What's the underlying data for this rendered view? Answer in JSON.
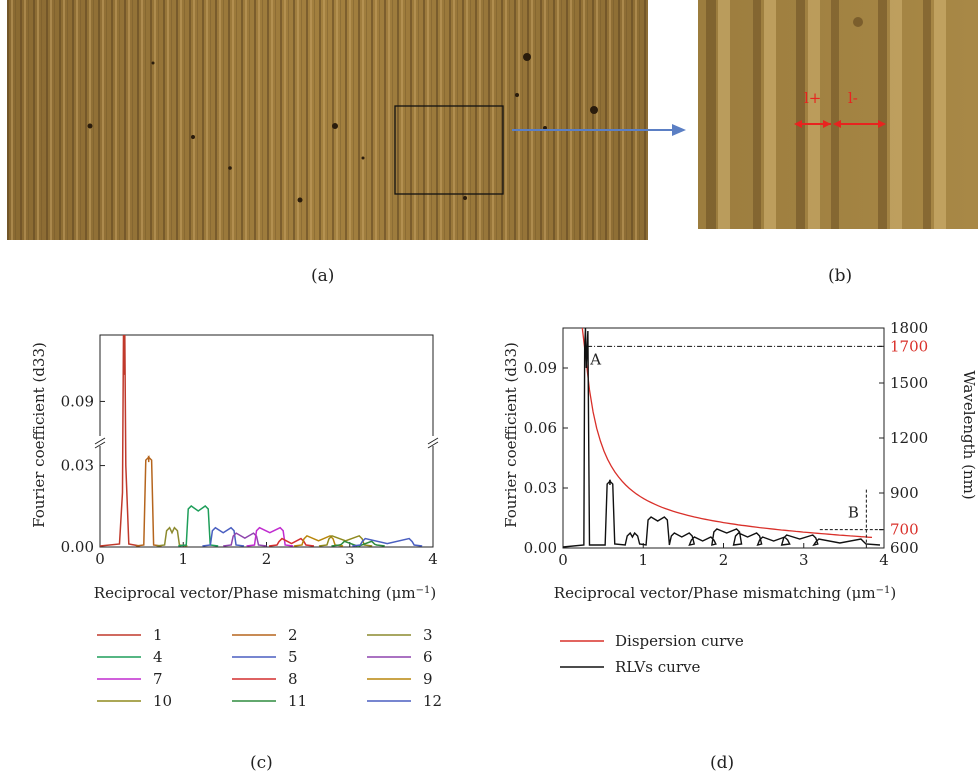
{
  "panels": {
    "a": {
      "label": "(a)"
    },
    "b": {
      "label": "(b)",
      "marker_left": "l+",
      "marker_right": "l-"
    },
    "c": {
      "label": "(c)"
    },
    "d": {
      "label": "(d)",
      "point_a": "A",
      "point_b": "B"
    }
  },
  "colors": {
    "microscope_base": "#9b7a3c",
    "arrow": "#5b7fc4",
    "marker": "#e8231f",
    "dispersion": "#d9302a",
    "rlv": "#111111"
  },
  "chart_data": [
    {
      "type": "line",
      "panel": "c",
      "xlabel": "Reciprocal vector/Phase mismatching",
      "xunit": "μm",
      "xunit_exp": "−1",
      "ylabel": "Fourier coefficient (d33)",
      "xlim": [
        0,
        4
      ],
      "ylim": [
        0,
        0.11
      ],
      "axis_break": true,
      "xticks": [
        "0",
        "1",
        "2",
        "3",
        "4"
      ],
      "yticks": [
        "0.00",
        "0.03",
        "0.09"
      ],
      "legend_placement": "below",
      "series": [
        {
          "name": "1",
          "color": "#c0392b",
          "x": [
            0.27,
            0.31
          ],
          "peak": 0.115
        },
        {
          "name": "2",
          "color": "#b5651d",
          "x": [
            0.55,
            0.62
          ],
          "peak": 0.032
        },
        {
          "name": "3",
          "color": "#8c8a2e",
          "x": [
            0.8,
            0.93
          ],
          "peak": 0.006
        },
        {
          "name": "4",
          "color": "#1e9e5a",
          "x": [
            1.06,
            1.3
          ],
          "peak": 0.014
        },
        {
          "name": "5",
          "color": "#4a5fc1",
          "x": [
            1.35,
            1.61
          ],
          "peak": 0.006
        },
        {
          "name": "6",
          "color": "#8e44ad",
          "x": [
            1.6,
            1.88
          ],
          "peak": 0.004
        },
        {
          "name": "7",
          "color": "#c02ccf",
          "x": [
            1.88,
            2.2
          ],
          "peak": 0.006
        },
        {
          "name": "8",
          "color": "#d32f2f",
          "x": [
            2.15,
            2.45
          ],
          "peak": 0.002
        },
        {
          "name": "9",
          "color": "#b8860b",
          "x": [
            2.45,
            2.8
          ],
          "peak": 0.003
        },
        {
          "name": "10",
          "color": "#8f8a1f",
          "x": [
            2.75,
            3.15
          ],
          "peak": 0.003
        },
        {
          "name": "11",
          "color": "#2e8b3e",
          "x": [
            2.9,
            3.3
          ],
          "peak": 0.001
        },
        {
          "name": "12",
          "color": "#4a5fc1",
          "x": [
            3.15,
            3.75
          ],
          "peak": 0.002
        }
      ]
    },
    {
      "type": "line",
      "panel": "d",
      "xlabel": "Reciprocal vector/Phase mismatching",
      "xunit": "μm",
      "xunit_exp": "−1",
      "ylabel": "Fourier coefficient (d33)",
      "y2label": "Wavelength (nm)",
      "xlim": [
        0,
        4
      ],
      "ylim": [
        0,
        0.11
      ],
      "y2lim": [
        600,
        1800
      ],
      "xticks": [
        "0",
        "1",
        "2",
        "3",
        "4"
      ],
      "yticks": [
        "0.00",
        "0.03",
        "0.06",
        "0.09"
      ],
      "y2ticks": [
        "600",
        "700",
        "900",
        "1200",
        "1500",
        "1700",
        "1800"
      ],
      "y2_highlight": [
        "700",
        "1700"
      ],
      "legend_placement": "below",
      "series": [
        {
          "name": "Dispersion curve",
          "color": "#d9302a"
        },
        {
          "name": "RLVs curve",
          "color": "#111111"
        }
      ]
    }
  ]
}
